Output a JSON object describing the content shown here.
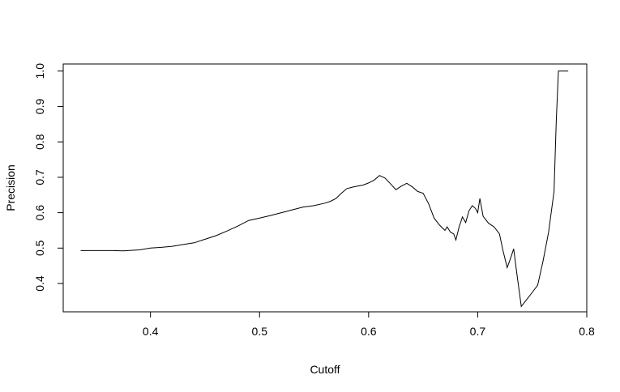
{
  "chart_data": {
    "type": "line",
    "title": "",
    "xlabel": "Cutoff",
    "ylabel": "Precision",
    "xlim": [
      0.32,
      0.8
    ],
    "ylim": [
      0.32,
      1.02
    ],
    "x_ticks": [
      0.4,
      0.5,
      0.6,
      0.7,
      0.8
    ],
    "y_ticks": [
      0.4,
      0.5,
      0.6,
      0.7,
      0.8,
      0.9,
      1.0
    ],
    "x_tick_labels": [
      "0.4",
      "0.5",
      "0.6",
      "0.7",
      "0.8"
    ],
    "y_tick_labels": [
      "0.4",
      "0.5",
      "0.6",
      "0.7",
      "0.8",
      "0.9",
      "1.0"
    ],
    "grid": false,
    "legend": "none",
    "line_color": "#000000",
    "series": [
      {
        "x": [
          0.336,
          0.35,
          0.365,
          0.375,
          0.39,
          0.4,
          0.41,
          0.42,
          0.43,
          0.44,
          0.45,
          0.46,
          0.47,
          0.48,
          0.49,
          0.5,
          0.51,
          0.52,
          0.53,
          0.54,
          0.55,
          0.56,
          0.565,
          0.57,
          0.575,
          0.58,
          0.585,
          0.59,
          0.595,
          0.6,
          0.605,
          0.61,
          0.615,
          0.62,
          0.625,
          0.63,
          0.635,
          0.64,
          0.645,
          0.65,
          0.655,
          0.66,
          0.665,
          0.67,
          0.672,
          0.675,
          0.678,
          0.68,
          0.683,
          0.686,
          0.689,
          0.692,
          0.695,
          0.698,
          0.7,
          0.702,
          0.705,
          0.71,
          0.715,
          0.72,
          0.723,
          0.727,
          0.73,
          0.733,
          0.736,
          0.74,
          0.745,
          0.75,
          0.755,
          0.76,
          0.765,
          0.77,
          0.772,
          0.774,
          0.776,
          0.78,
          0.783
        ],
        "y": [
          0.493,
          0.493,
          0.493,
          0.492,
          0.495,
          0.5,
          0.502,
          0.505,
          0.51,
          0.515,
          0.525,
          0.535,
          0.548,
          0.562,
          0.578,
          0.585,
          0.592,
          0.6,
          0.608,
          0.616,
          0.62,
          0.627,
          0.632,
          0.64,
          0.655,
          0.668,
          0.672,
          0.675,
          0.678,
          0.684,
          0.692,
          0.705,
          0.698,
          0.682,
          0.665,
          0.675,
          0.683,
          0.673,
          0.66,
          0.655,
          0.625,
          0.585,
          0.565,
          0.55,
          0.56,
          0.545,
          0.54,
          0.523,
          0.56,
          0.588,
          0.572,
          0.605,
          0.62,
          0.612,
          0.6,
          0.64,
          0.59,
          0.57,
          0.56,
          0.54,
          0.495,
          0.445,
          0.47,
          0.498,
          0.425,
          0.335,
          0.355,
          0.375,
          0.395,
          0.465,
          0.545,
          0.66,
          0.855,
          1.0,
          1.0,
          1.0,
          1.0
        ]
      }
    ]
  }
}
